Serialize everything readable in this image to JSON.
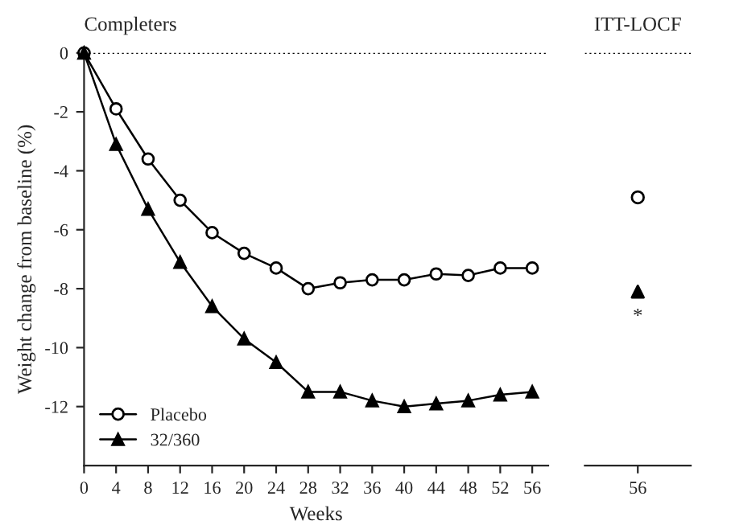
{
  "chart_data": [
    {
      "type": "line",
      "title": "Completers",
      "xlabel": "Weeks",
      "ylabel": "Weight change from baseline (%)",
      "x": [
        0,
        4,
        8,
        12,
        16,
        20,
        24,
        28,
        32,
        36,
        40,
        44,
        48,
        52,
        56
      ],
      "series": [
        {
          "name": "Placebo",
          "color": "#000000",
          "marker": "circle",
          "values": [
            0,
            -1.9,
            -3.6,
            -5.0,
            -6.1,
            -6.8,
            -7.3,
            -8.0,
            -7.8,
            -7.7,
            -7.7,
            -7.5,
            -7.55,
            -7.3,
            -7.3
          ]
        },
        {
          "name": "32/360",
          "color": "#000000",
          "marker": "triangle",
          "values": [
            0,
            -3.1,
            -5.3,
            -7.1,
            -8.6,
            -9.7,
            -10.5,
            -11.5,
            -11.5,
            -11.8,
            -12.0,
            -11.9,
            -11.8,
            -11.6,
            -11.5
          ]
        }
      ],
      "xlim": [
        0,
        58
      ],
      "xticks": [
        0,
        4,
        8,
        12,
        16,
        20,
        24,
        28,
        32,
        36,
        40,
        44,
        48,
        52,
        56
      ],
      "ylim": [
        -14,
        0
      ],
      "yticks": [
        0,
        -2,
        -4,
        -6,
        -8,
        -10,
        -12
      ],
      "ref_lines": [
        {
          "axis": "y",
          "value": 0,
          "line_style": "dotted"
        }
      ],
      "legend": "bottom left",
      "grid": false
    },
    {
      "type": "scatter",
      "title": "ITT-LOCF",
      "categories": [
        "56"
      ],
      "series": [
        {
          "color": "#000000",
          "marker": "circle",
          "values": [
            -4.9
          ]
        },
        {
          "color": "#000000",
          "marker": "triangle",
          "values": [
            -8.1
          ]
        }
      ],
      "ylim": [
        -14,
        0
      ],
      "tick_labels": "x",
      "annotations": [
        "*"
      ],
      "ref_lines": [
        {
          "axis": "y",
          "value": 0,
          "line_style": "dotted"
        }
      ],
      "grid": false
    }
  ]
}
